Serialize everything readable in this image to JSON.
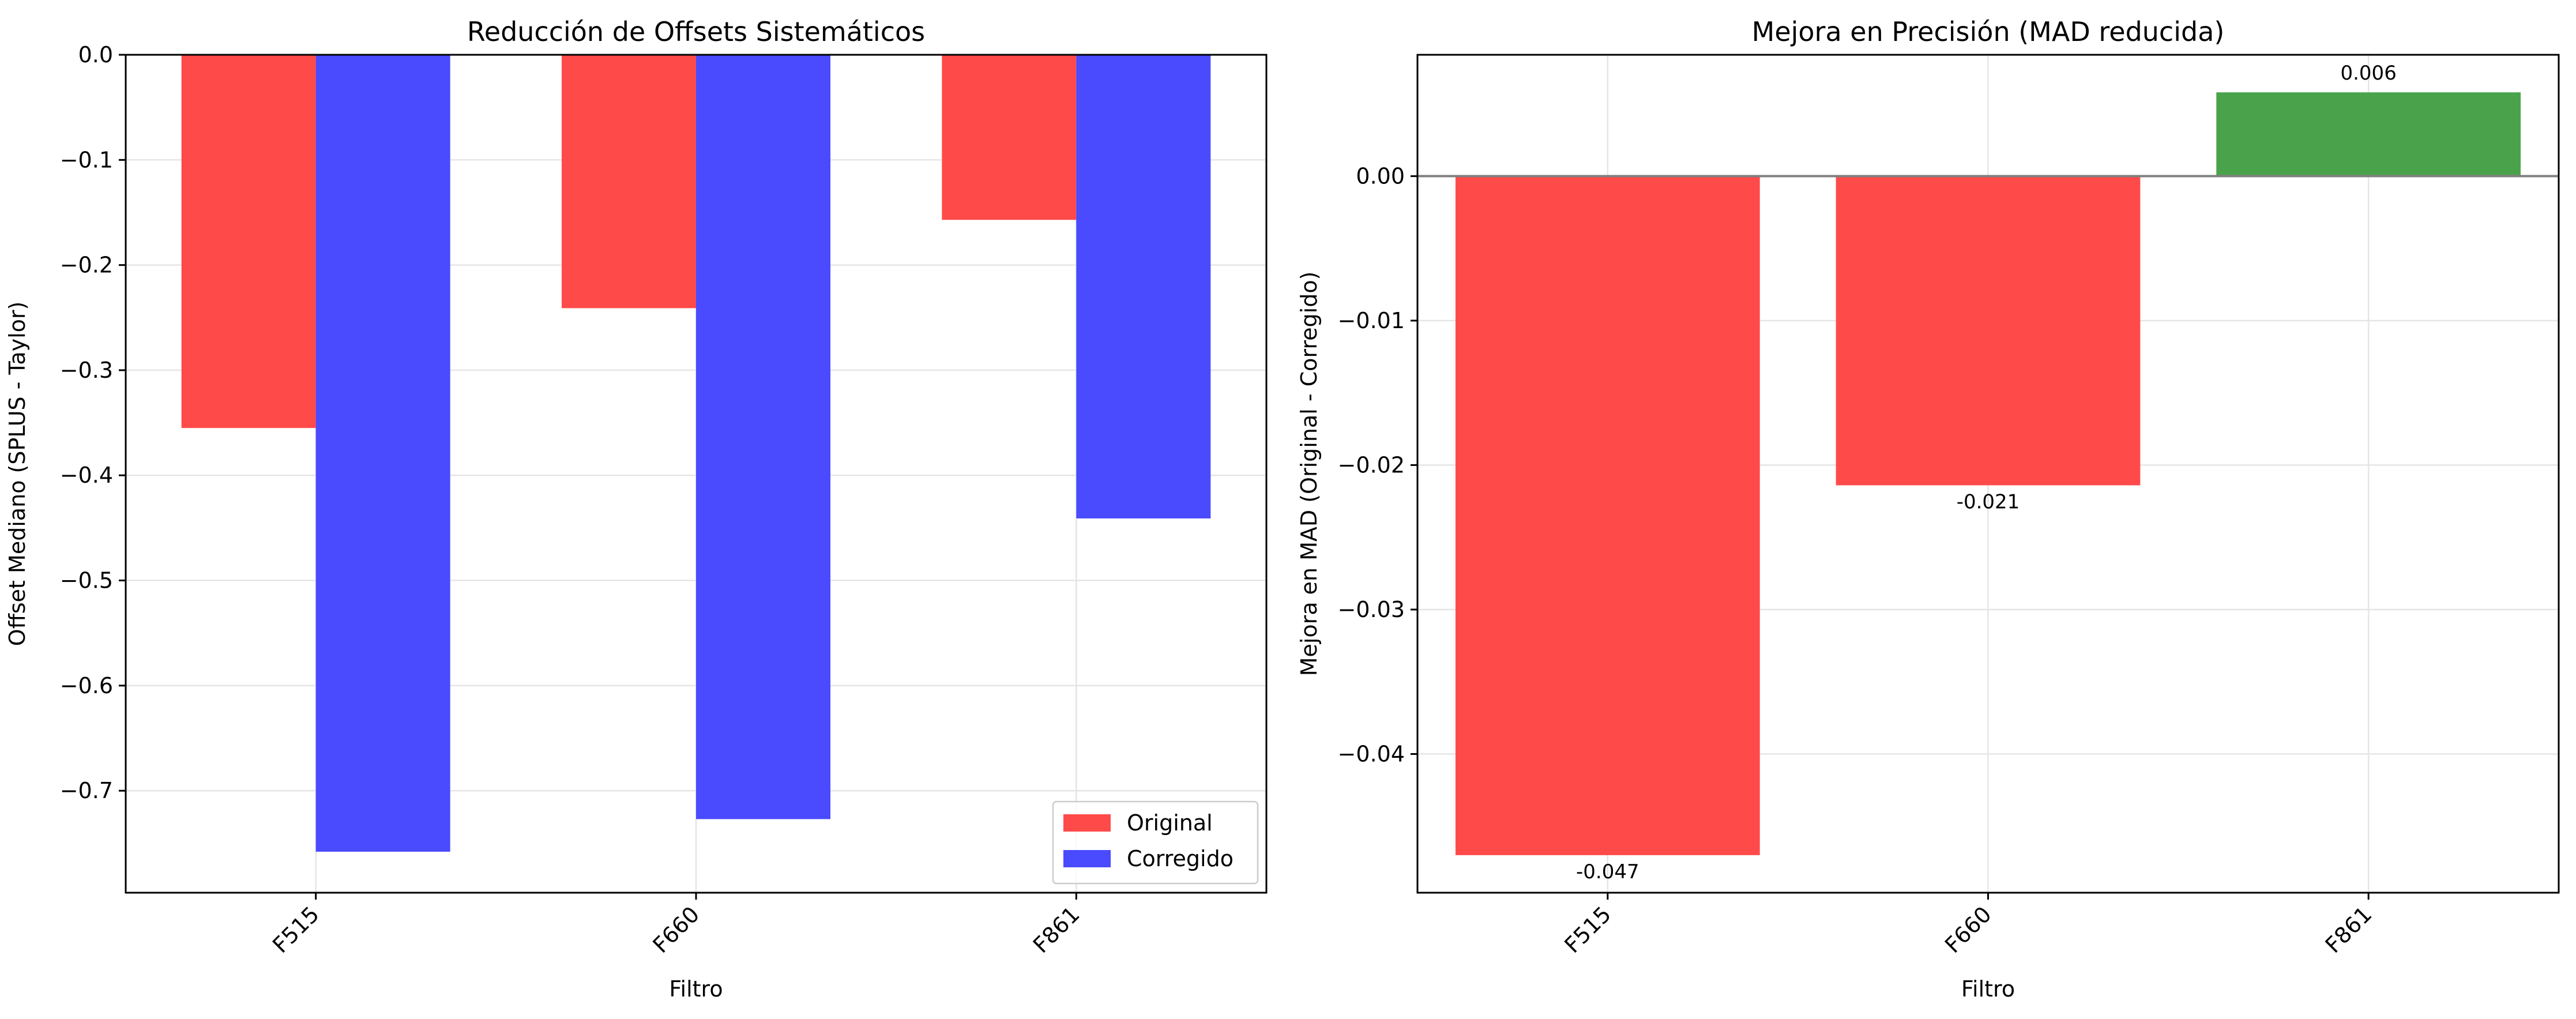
{
  "chart_data": [
    {
      "type": "bar",
      "title": "Reducción de Offsets Sistemáticos",
      "xlabel": "Filtro",
      "ylabel": "Offset Mediano (SPLUS - Taylor)",
      "categories": [
        "F515",
        "F660",
        "F861"
      ],
      "series": [
        {
          "name": "Original",
          "color": "#ff4a4a",
          "values": [
            -0.355,
            -0.241,
            -0.157
          ]
        },
        {
          "name": "Corregido",
          "color": "#4a4aff",
          "values": [
            -0.758,
            -0.727,
            -0.441
          ]
        }
      ],
      "ylim": [
        -0.797,
        0.0
      ],
      "yticks": [
        0.0,
        -0.1,
        -0.2,
        -0.3,
        -0.4,
        -0.5,
        -0.6,
        -0.7
      ],
      "yticklabels": [
        "0.0",
        "−0.1",
        "−0.2",
        "−0.3",
        "−0.4",
        "−0.5",
        "−0.6",
        "−0.7"
      ],
      "grid": true,
      "legend": "lower-right"
    },
    {
      "type": "bar",
      "title": "Mejora en Precisión (MAD reducida)",
      "xlabel": "Filtro",
      "ylabel": "Mejora en MAD (Original - Corregido)",
      "categories": [
        "F515",
        "F660",
        "F861"
      ],
      "values": [
        -0.047,
        -0.0214,
        0.0058
      ],
      "colors": [
        "#ff4a4a",
        "#ff4a4a",
        "#4aa34a"
      ],
      "data_labels": [
        "-0.047",
        "-0.021",
        "0.006"
      ],
      "ylim": [
        -0.0496,
        0.0084
      ],
      "yticks": [
        0.0,
        -0.01,
        -0.02,
        -0.03,
        -0.04
      ],
      "yticklabels": [
        "0.00",
        "−0.01",
        "−0.02",
        "−0.03",
        "−0.04"
      ],
      "grid": true
    }
  ]
}
